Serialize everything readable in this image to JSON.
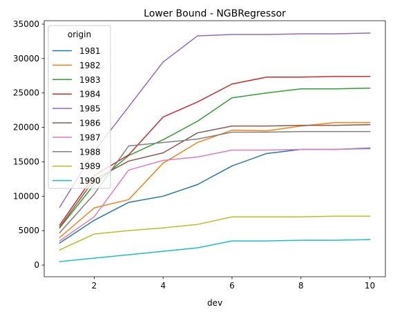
{
  "chart_data": {
    "type": "line",
    "title": "Lower Bound - NGBRegressor",
    "xlabel": "dev",
    "ylabel": "",
    "xlim": [
      0.55,
      10.45
    ],
    "ylim": [
      -1700,
      35500
    ],
    "x_ticks": [
      2,
      4,
      6,
      8,
      10
    ],
    "y_ticks": [
      0,
      5000,
      10000,
      15000,
      20000,
      25000,
      30000,
      35000
    ],
    "grid": false,
    "legend": {
      "title": "origin",
      "placement": "upper-left"
    },
    "x": [
      1,
      2,
      3,
      4,
      5,
      6,
      7,
      8,
      9,
      10
    ],
    "series": [
      {
        "name": "1981",
        "color": "#1f77b4",
        "values": [
          3200,
          6500,
          9100,
          10000,
          11700,
          14400,
          16200,
          16800,
          16800,
          17000
        ]
      },
      {
        "name": "1982",
        "color": "#ff7f0e",
        "values": [
          4000,
          8300,
          9500,
          14800,
          17800,
          19600,
          19500,
          20200,
          20700,
          20700
        ]
      },
      {
        "name": "1983",
        "color": "#2ca02c",
        "values": [
          5400,
          11700,
          15900,
          18200,
          20900,
          24300,
          25000,
          25600,
          25600,
          25700
        ]
      },
      {
        "name": "1984",
        "color": "#d62728",
        "values": [
          5800,
          13000,
          16000,
          21500,
          23700,
          26300,
          27300,
          27300,
          27400,
          27400
        ]
      },
      {
        "name": "1985",
        "color": "#9467bd",
        "values": [
          8400,
          16500,
          23000,
          29500,
          33300,
          33500,
          33500,
          33600,
          33600,
          33700
        ]
      },
      {
        "name": "1986",
        "color": "#8c564b",
        "values": [
          5500,
          12400,
          15100,
          16300,
          19200,
          20200,
          20200,
          20300,
          20300,
          20400
        ]
      },
      {
        "name": "1987",
        "color": "#e377c2",
        "values": [
          3500,
          7000,
          13800,
          15200,
          15700,
          16700,
          16700,
          16800,
          16800,
          16900
        ]
      },
      {
        "name": "1988",
        "color": "#7f7f7f",
        "values": [
          4700,
          10300,
          17300,
          17800,
          18300,
          19300,
          19300,
          19400,
          19400,
          19400
        ]
      },
      {
        "name": "1989",
        "color": "#bcbd22",
        "values": [
          2200,
          4500,
          5000,
          5400,
          5900,
          7000,
          7000,
          7000,
          7100,
          7100
        ]
      },
      {
        "name": "1990",
        "color": "#17becf",
        "values": [
          500,
          1000,
          1500,
          2000,
          2500,
          3500,
          3500,
          3600,
          3600,
          3700
        ]
      }
    ]
  }
}
